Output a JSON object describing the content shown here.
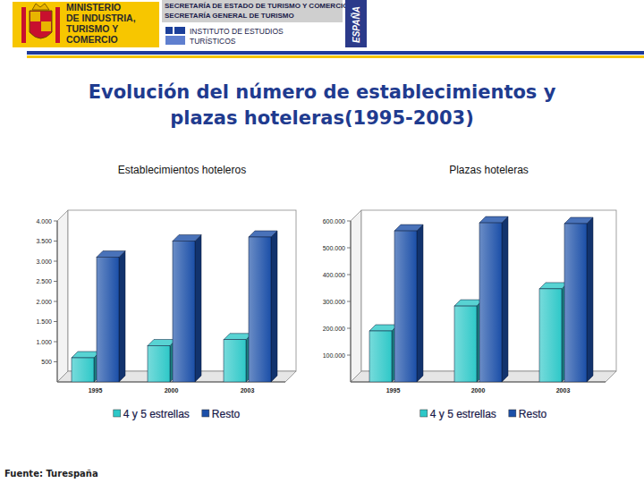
{
  "header": {
    "ministry": [
      "MINISTERIO",
      "DE INDUSTRIA,",
      "TURISMO Y",
      "COMERCIO"
    ],
    "secretariat": [
      "SECRETARÍA DE ESTADO DE TURISMO Y COMERCIO",
      "SECRETARÍA GENERAL DE TURISMO"
    ],
    "institute": [
      "INSTITUTO DE ESTUDIOS",
      "TURÍSTICOS"
    ],
    "country": "ESPAÑA"
  },
  "title": [
    "Evolución del número de establecimientos y",
    "plazas hoteleras(1995-2003)"
  ],
  "source": "Fuente: Turespaña",
  "chart_data": [
    {
      "type": "bar",
      "title": "Establecimientos hoteleros",
      "categories": [
        "1995",
        "2000",
        "2003"
      ],
      "series": [
        {
          "name": "4 y 5 estrellas",
          "color": "#2ec8c8",
          "values": [
            600,
            900,
            1050
          ]
        },
        {
          "name": "Resto",
          "color": "#1b4fa8",
          "values": [
            3100,
            3500,
            3600
          ]
        }
      ],
      "ylim": [
        0,
        4000
      ],
      "yticks": [
        500,
        {
          "value": 1000,
          "label": "1.000"
        },
        {
          "value": 1500,
          "label": "1.500"
        },
        {
          "value": 2000,
          "label": "2.000"
        },
        {
          "value": 2500,
          "label": "2.500"
        },
        {
          "value": 3000,
          "label": "3.000"
        },
        {
          "value": 3500,
          "label": "3.500"
        },
        {
          "value": 4000,
          "label": "4.000"
        }
      ],
      "grid": false,
      "legend": "bottom"
    },
    {
      "type": "bar",
      "title": "Plazas hoteleras",
      "categories": [
        "1995",
        "2000",
        "2003"
      ],
      "series": [
        {
          "name": "4 y 5 estrellas",
          "color": "#2ec8c8",
          "values": [
            190000,
            283000,
            347000
          ]
        },
        {
          "name": "Resto",
          "color": "#1b4fa8",
          "values": [
            563000,
            593000,
            590000
          ]
        }
      ],
      "ylim": [
        0,
        600000
      ],
      "yticks": [
        {
          "value": 100000,
          "label": "100.000"
        },
        {
          "value": 200000,
          "label": "200.000"
        },
        {
          "value": 300000,
          "label": "300.000"
        },
        {
          "value": 400000,
          "label": "400.000"
        },
        {
          "value": 500000,
          "label": "500.000"
        },
        {
          "value": 600000,
          "label": "600.000"
        }
      ],
      "grid": false,
      "legend": "bottom"
    }
  ]
}
